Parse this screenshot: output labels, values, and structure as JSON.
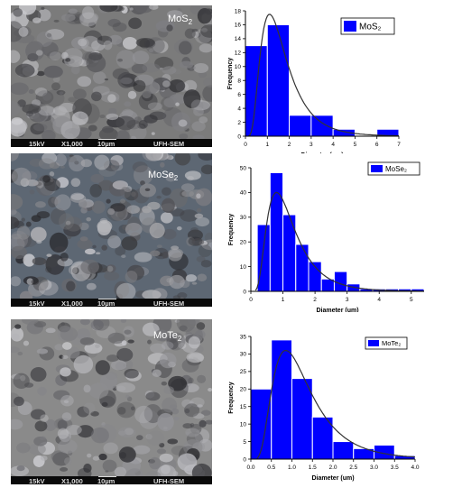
{
  "sem_images": [
    {
      "material": "MoS",
      "material_sub": "2",
      "voltage": "15kV",
      "magnification": "X1,000",
      "scale": "10µm",
      "lab": "UFH-SEM",
      "tone": "#7b7b7b"
    },
    {
      "material": "MoSe",
      "material_sub": "2",
      "voltage": "15kV",
      "magnification": "X1,000",
      "scale": "10µm",
      "lab": "UFH-SEM",
      "tone": "#5d6773"
    },
    {
      "material": "MoTe",
      "material_sub": "2",
      "voltage": "15kV",
      "magnification": "X1,000",
      "scale": "10µm",
      "lab": "UFH-SEM",
      "tone": "#8a8a8a"
    }
  ],
  "colors": {
    "bar": "#0000ff",
    "fit_line": "#333333",
    "bar_edge": "#ffffff"
  },
  "chart_data": [
    {
      "type": "bar",
      "title": "",
      "xlabel": "Diameter (um)",
      "ylabel": "Frequency",
      "legend": "MoS₂",
      "legend_position": "top-right",
      "bin_width": 1,
      "bin_starts": [
        0,
        1,
        2,
        3,
        4,
        5,
        6
      ],
      "values": [
        13,
        16,
        3,
        3,
        1,
        0,
        1
      ],
      "xlim": [
        0,
        7
      ],
      "ylim": [
        0,
        18
      ],
      "xticks": [
        "0",
        "1",
        "2",
        "3",
        "4",
        "5",
        "6",
        "7"
      ],
      "yticks": [
        "0",
        "2",
        "4",
        "6",
        "8",
        "10",
        "12",
        "14",
        "16",
        "18"
      ],
      "fit_curve": {
        "type": "lognormal",
        "peak_x": 1.1,
        "peak_y": 17.5
      },
      "grid": false
    },
    {
      "type": "bar",
      "title": "",
      "xlabel": "Diameter (um)",
      "ylabel": "Frequency",
      "legend": "MoSe₂",
      "legend_position": "top-right",
      "bin_width": 0.4,
      "bin_starts": [
        0.2,
        0.6,
        1.0,
        1.4,
        1.8,
        2.2,
        2.6,
        3.0,
        3.4,
        3.8,
        4.2,
        4.6,
        5.0
      ],
      "values": [
        27,
        48,
        31,
        19,
        12,
        5,
        8,
        3,
        1,
        1,
        1,
        1,
        1
      ],
      "xlim": [
        0,
        5.4
      ],
      "ylim": [
        0,
        50
      ],
      "xticks": [
        "0",
        "1",
        "2",
        "3",
        "4",
        "5"
      ],
      "yticks": [
        "0",
        "10",
        "20",
        "30",
        "40",
        "50"
      ],
      "fit_curve": {
        "type": "lognormal",
        "peak_x": 0.8,
        "peak_y": 40
      },
      "grid": false
    },
    {
      "type": "bar",
      "title": "",
      "xlabel": "Diameter (um)",
      "ylabel": "Frequency",
      "legend": "MoTe₂",
      "legend_position": "top-left",
      "bin_width": 0.5,
      "bin_starts": [
        0.0,
        0.5,
        1.0,
        1.5,
        2.0,
        2.5,
        3.0,
        3.5
      ],
      "values": [
        20,
        34,
        23,
        12,
        5,
        3,
        4,
        1
      ],
      "xlim": [
        0,
        4.0
      ],
      "ylim": [
        0,
        35
      ],
      "xticks": [
        "0.0",
        "0.5",
        "1.0",
        "1.5",
        "2.0",
        "2.5",
        "3.0",
        "3.5",
        "4.0"
      ],
      "yticks": [
        "0",
        "5",
        "10",
        "15",
        "20",
        "25",
        "30",
        "35"
      ],
      "fit_curve": {
        "type": "lognormal",
        "peak_x": 0.85,
        "peak_y": 31
      },
      "grid": false
    }
  ]
}
